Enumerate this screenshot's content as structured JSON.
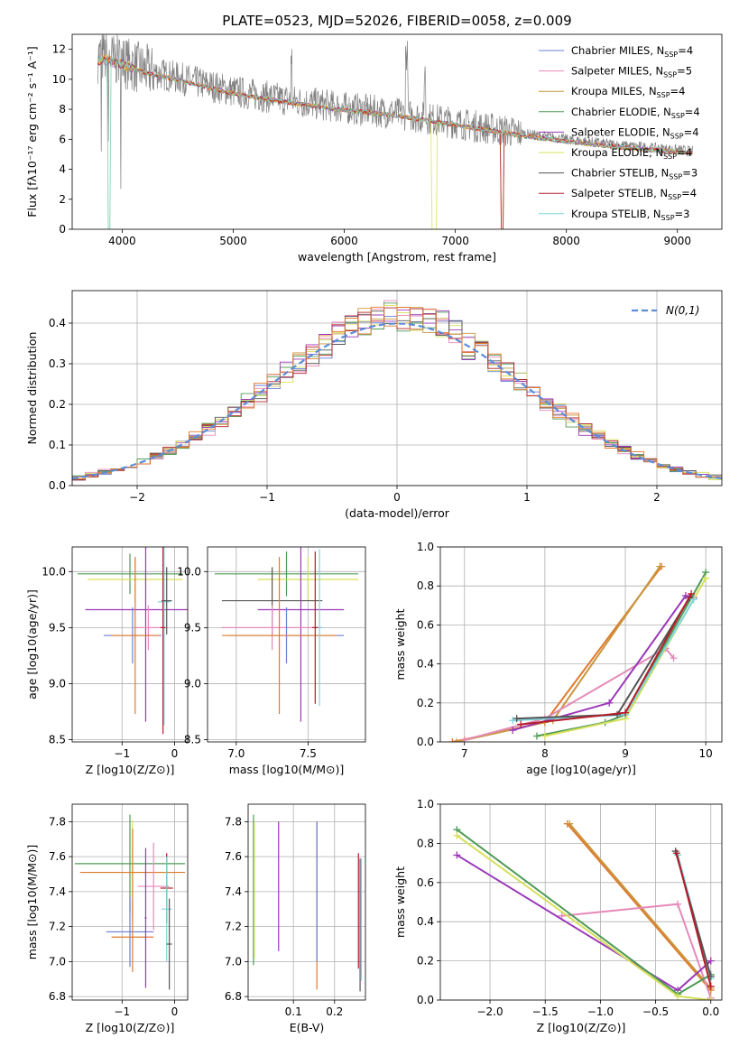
{
  "title": "PLATE=0523, MJD=52026, FIBERID=0058, z=0.009",
  "colors": [
    "#6a7fd6",
    "#e58ab8",
    "#c8963e",
    "#4f9a58",
    "#9b38b8",
    "#d6e05a",
    "#555555",
    "#b51d2a",
    "#7fd4dc",
    "#e07a2e"
  ],
  "chart_data": [
    {
      "id": "spectrum",
      "type": "line",
      "xlabel": "wavelength [Angstrom, rest frame]",
      "ylabel": "Flux [fλ10⁻¹⁷ erg cm⁻² s⁻¹ A⁻¹]",
      "xlim": [
        3550,
        9400
      ],
      "ylim": [
        0,
        13
      ],
      "xticks": [
        4000,
        5000,
        6000,
        7000,
        8000,
        9000
      ],
      "yticks": [
        0,
        2,
        4,
        6,
        8,
        10,
        12
      ],
      "grid": false,
      "legend": "top-right",
      "legend_entries": [
        {
          "label": "Chabrier MILES, N",
          "sub": "SSP",
          "suffix": "=4"
        },
        {
          "label": "Salpeter MILES, N",
          "sub": "SSP",
          "suffix": "=5"
        },
        {
          "label": "Kroupa MILES, N",
          "sub": "SSP",
          "suffix": "=4"
        },
        {
          "label": "Chabrier ELODIE, N",
          "sub": "SSP",
          "suffix": "=4"
        },
        {
          "label": "Salpeter ELODIE, N",
          "sub": "SSP",
          "suffix": "=4"
        },
        {
          "label": "Kroupa ELODIE, N",
          "sub": "SSP",
          "suffix": "=4"
        },
        {
          "label": "Chabrier STELIB, N",
          "sub": "SSP",
          "suffix": "=3"
        },
        {
          "label": "Salpeter STELIB, N",
          "sub": "SSP",
          "suffix": "=4"
        },
        {
          "label": "Kroupa STELIB, N",
          "sub": "SSP",
          "suffix": "=3"
        }
      ],
      "data_trend": [
        [
          3800,
          11.5
        ],
        [
          4000,
          11.2
        ],
        [
          4200,
          10.6
        ],
        [
          4500,
          10.1
        ],
        [
          5000,
          9.2
        ],
        [
          5500,
          8.6
        ],
        [
          6000,
          8.1
        ],
        [
          6500,
          7.7
        ],
        [
          7000,
          7.1
        ],
        [
          7500,
          6.5
        ],
        [
          8000,
          6.0
        ],
        [
          8500,
          5.6
        ],
        [
          9000,
          5.3
        ],
        [
          9150,
          5.2
        ]
      ]
    },
    {
      "id": "residuals",
      "type": "histogram",
      "xlabel": "(data-model)/error",
      "ylabel": "Normed distribution",
      "xlim": [
        -2.5,
        2.5
      ],
      "ylim": [
        0,
        0.48
      ],
      "xticks": [
        -2,
        -1,
        0,
        1,
        2
      ],
      "yticks": [
        0.0,
        0.1,
        0.2,
        0.3,
        0.4
      ],
      "grid": true,
      "legend": "top-right",
      "reference_label": "N(0,1)",
      "bin_width": 0.1
    },
    {
      "id": "age-vs-Z",
      "type": "errorbar",
      "xlabel": "Z [log10(Z/Z⊙)]",
      "ylabel": "age [log10(age/yr)]",
      "xlim": [
        -1.95,
        0.25
      ],
      "ylim": [
        8.48,
        10.22
      ],
      "xticks": [
        -1,
        0
      ],
      "yticks": [
        8.5,
        9.0,
        9.5,
        10.0
      ],
      "grid": true,
      "points": [
        {
          "x": -0.85,
          "y": 9.98,
          "xerr": 1.0,
          "yerr": 0.18,
          "c": 3
        },
        {
          "x": -0.75,
          "y": 9.93,
          "xerr": 0.9,
          "yerr": 0.2,
          "c": 5
        },
        {
          "x": -0.55,
          "y": 9.66,
          "xerr": 1.15,
          "yerr": 1.0,
          "c": 4
        },
        {
          "x": -0.5,
          "y": 9.5,
          "xerr": 0.25,
          "yerr": 0.2,
          "c": 1
        },
        {
          "x": -0.8,
          "y": 9.43,
          "xerr": 0.55,
          "yerr": 0.25,
          "c": 0
        },
        {
          "x": -0.75,
          "y": 9.43,
          "xerr": 0.45,
          "yerr": 0.7,
          "c": 9
        },
        {
          "x": -0.2,
          "y": 9.73,
          "xerr": 0.12,
          "yerr": 1.1,
          "c": 8
        },
        {
          "x": -0.15,
          "y": 9.74,
          "xerr": 0.1,
          "yerr": 0.3,
          "c": 6
        },
        {
          "x": -0.22,
          "y": 9.5,
          "xerr": 0.05,
          "yerr": 0.95,
          "c": 7
        }
      ]
    },
    {
      "id": "age-vs-mass",
      "type": "errorbar",
      "xlabel": "mass [log10(M/M⊙)]",
      "ylabel": "",
      "xlim": [
        6.8,
        7.9
      ],
      "ylim": [
        8.48,
        10.22
      ],
      "xticks": [
        7.0,
        7.5
      ],
      "yticks": [
        8.5,
        9.0,
        9.5,
        10.0
      ],
      "grid": true,
      "points": [
        {
          "x": 7.35,
          "y": 9.98,
          "xerr": 0.5,
          "yerr": 0.2,
          "c": 3
        },
        {
          "x": 7.5,
          "y": 9.93,
          "xerr": 0.35,
          "yerr": 0.2,
          "c": 5
        },
        {
          "x": 7.25,
          "y": 9.74,
          "xerr": 0.35,
          "yerr": 0.3,
          "c": 6
        },
        {
          "x": 7.45,
          "y": 9.66,
          "xerr": 0.3,
          "yerr": 1.0,
          "c": 4
        },
        {
          "x": 7.25,
          "y": 9.5,
          "xerr": 0.35,
          "yerr": 0.2,
          "c": 1
        },
        {
          "x": 7.35,
          "y": 9.43,
          "xerr": 0.4,
          "yerr": 0.25,
          "c": 0
        },
        {
          "x": 7.3,
          "y": 9.43,
          "xerr": 0.4,
          "yerr": 0.7,
          "c": 9
        },
        {
          "x": 7.58,
          "y": 9.5,
          "xerr": 0.02,
          "yerr": 0.7,
          "c": 8
        },
        {
          "x": 7.55,
          "y": 9.5,
          "xerr": 0.02,
          "yerr": 0.68,
          "c": 7
        }
      ]
    },
    {
      "id": "weight-vs-age",
      "type": "line",
      "xlabel": "age [log10(age/yr)]",
      "ylabel": "mass weight",
      "xlim": [
        6.7,
        10.2
      ],
      "ylim": [
        0,
        1.0
      ],
      "xticks": [
        7,
        8,
        9,
        10
      ],
      "yticks": [
        0.0,
        0.2,
        0.4,
        0.6,
        0.8,
        1.0
      ],
      "grid": true,
      "series": [
        {
          "c": 9,
          "points": [
            [
              6.85,
              0.0
            ],
            [
              8.0,
              0.1
            ],
            [
              9.45,
              0.9
            ]
          ]
        },
        {
          "c": 2,
          "points": [
            [
              6.9,
              0.0
            ],
            [
              8.1,
              0.11
            ],
            [
              9.43,
              0.9
            ]
          ]
        },
        {
          "c": 1,
          "points": [
            [
              7.0,
              0.01
            ],
            [
              8.0,
              0.12
            ],
            [
              9.5,
              0.48
            ],
            [
              9.6,
              0.43
            ]
          ]
        },
        {
          "c": 4,
          "points": [
            [
              7.6,
              0.06
            ],
            [
              8.8,
              0.2
            ],
            [
              9.75,
              0.75
            ],
            [
              9.85,
              0.74
            ]
          ]
        },
        {
          "c": 3,
          "points": [
            [
              7.9,
              0.03
            ],
            [
              8.75,
              0.1
            ],
            [
              9.0,
              0.14
            ],
            [
              10.0,
              0.87
            ]
          ]
        },
        {
          "c": 5,
          "points": [
            [
              8.0,
              0.03
            ],
            [
              9.0,
              0.12
            ],
            [
              10.0,
              0.84
            ]
          ]
        },
        {
          "c": 8,
          "points": [
            [
              7.6,
              0.11
            ],
            [
              9.0,
              0.14
            ],
            [
              9.85,
              0.73
            ]
          ]
        },
        {
          "c": 6,
          "points": [
            [
              7.65,
              0.12
            ],
            [
              8.9,
              0.14
            ],
            [
              9.8,
              0.74
            ]
          ]
        },
        {
          "c": 7,
          "points": [
            [
              7.7,
              0.09
            ],
            [
              9.0,
              0.15
            ],
            [
              9.82,
              0.76
            ]
          ]
        }
      ]
    },
    {
      "id": "mass-vs-Z",
      "type": "errorbar",
      "xlabel": "Z [log10(Z/Z⊙)]",
      "ylabel": "mass [log10(M/M⊙)]",
      "xlim": [
        -1.95,
        0.25
      ],
      "ylim": [
        6.78,
        7.9
      ],
      "xticks": [
        -1,
        0
      ],
      "yticks": [
        6.8,
        7.0,
        7.2,
        7.4,
        7.6,
        7.8
      ],
      "grid": true,
      "points": [
        {
          "x": -0.85,
          "y": 7.56,
          "xerr": 1.05,
          "yerr": 0.28,
          "c": 3
        },
        {
          "x": -0.8,
          "y": 7.51,
          "xerr": 0.9,
          "yerr": 0.3,
          "c": 5
        },
        {
          "x": -0.8,
          "y": 7.51,
          "xerr": 1.0,
          "yerr": 0.25,
          "c": 9
        },
        {
          "x": -0.4,
          "y": 7.43,
          "xerr": 0.3,
          "yerr": 0.25,
          "c": 1
        },
        {
          "x": -0.15,
          "y": 7.42,
          "xerr": 0.12,
          "yerr": 0.2,
          "c": 7
        },
        {
          "x": -0.15,
          "y": 7.3,
          "xerr": 0.1,
          "yerr": 0.3,
          "c": 8
        },
        {
          "x": -0.85,
          "y": 7.17,
          "xerr": 0.45,
          "yerr": 0.2,
          "c": 0
        },
        {
          "x": -0.8,
          "y": 7.14,
          "xerr": 0.4,
          "yerr": 0.2,
          "c": 9
        },
        {
          "x": -0.1,
          "y": 7.1,
          "xerr": 0.05,
          "yerr": 0.26,
          "c": 6
        },
        {
          "x": -0.55,
          "y": 7.25,
          "xerr": 0.02,
          "yerr": 0.4,
          "c": 4
        }
      ]
    },
    {
      "id": "mass-vs-EBV",
      "type": "errorbar",
      "xlabel": "E(B-V)",
      "ylabel": "",
      "xlim": [
        -0.01,
        0.275
      ],
      "ylim": [
        6.78,
        7.9
      ],
      "xticks": [
        0.1,
        0.2
      ],
      "yticks": [
        6.8,
        7.0,
        7.2,
        7.4,
        7.6,
        7.8
      ],
      "grid": true,
      "points": [
        {
          "x": 0.003,
          "y": 7.41,
          "xerr": 0,
          "yerr": 0.43,
          "c": 3
        },
        {
          "x": 0.005,
          "y": 7.41,
          "xerr": 0,
          "yerr": 0.39,
          "c": 5
        },
        {
          "x": 0.064,
          "y": 7.43,
          "xerr": 0,
          "yerr": 0.37,
          "c": 4
        },
        {
          "x": 0.157,
          "y": 7.32,
          "xerr": 0,
          "yerr": 0.48,
          "c": 9
        },
        {
          "x": 0.157,
          "y": 7.4,
          "xerr": 0,
          "yerr": 0.4,
          "c": 0
        },
        {
          "x": 0.258,
          "y": 7.29,
          "xerr": 0,
          "yerr": 0.33,
          "c": 7
        },
        {
          "x": 0.262,
          "y": 7.21,
          "xerr": 0,
          "yerr": 0.38,
          "c": 6
        },
        {
          "x": 0.265,
          "y": 7.24,
          "xerr": 0,
          "yerr": 0.35,
          "c": 8
        }
      ]
    },
    {
      "id": "weight-vs-Z",
      "type": "line",
      "xlabel": "Z [log10(Z/Z⊙)]",
      "ylabel": "mass weight",
      "xlim": [
        -2.45,
        0.1
      ],
      "ylim": [
        0,
        1.0
      ],
      "xticks": [
        -2.0,
        -1.5,
        -1.0,
        -0.5,
        0.0
      ],
      "yticks": [
        0.0,
        0.2,
        0.4,
        0.6,
        0.8,
        1.0
      ],
      "grid": true,
      "series": [
        {
          "c": 9,
          "points": [
            [
              -1.3,
              0.9
            ],
            [
              0.0,
              0.05
            ]
          ]
        },
        {
          "c": 2,
          "points": [
            [
              -1.28,
              0.9
            ],
            [
              0.0,
              0.06
            ]
          ]
        },
        {
          "c": 1,
          "points": [
            [
              -1.35,
              0.43
            ],
            [
              -0.3,
              0.49
            ],
            [
              0.0,
              0.01
            ]
          ]
        },
        {
          "c": 4,
          "points": [
            [
              -2.3,
              0.74
            ],
            [
              -0.3,
              0.05
            ],
            [
              0.0,
              0.2
            ]
          ]
        },
        {
          "c": 3,
          "points": [
            [
              -2.3,
              0.87
            ],
            [
              -0.3,
              0.03
            ],
            [
              0.0,
              0.13
            ]
          ]
        },
        {
          "c": 5,
          "points": [
            [
              -2.3,
              0.84
            ],
            [
              -0.3,
              0.02
            ],
            [
              0.0,
              0.0
            ]
          ]
        },
        {
          "c": 8,
          "points": [
            [
              -0.3,
              0.74
            ],
            [
              0.0,
              0.11
            ]
          ]
        },
        {
          "c": 6,
          "points": [
            [
              -0.32,
              0.76
            ],
            [
              0.0,
              0.12
            ]
          ]
        },
        {
          "c": 7,
          "points": [
            [
              -0.31,
              0.75
            ],
            [
              0.0,
              0.07
            ]
          ]
        }
      ]
    }
  ]
}
